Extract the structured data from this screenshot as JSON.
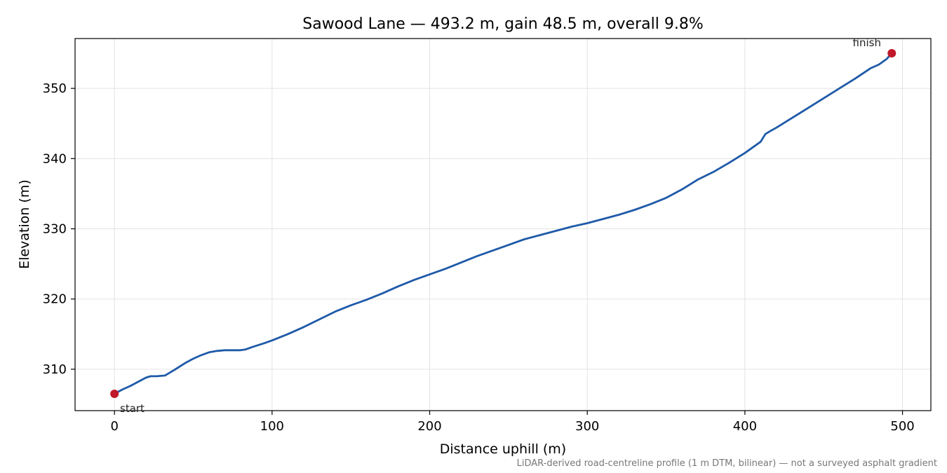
{
  "chart_data": {
    "type": "line",
    "title": "Sawood Lane — 493.2 m, gain 48.5 m, overall 9.8%",
    "xlabel": "Distance uphill (m)",
    "ylabel": "Elevation (m)",
    "xlim": [
      -25,
      518
    ],
    "ylim": [
      304.1,
      357.1
    ],
    "xticks": [
      0,
      100,
      200,
      300,
      400,
      500
    ],
    "yticks": [
      310,
      320,
      330,
      340,
      350
    ],
    "xtick_labels": [
      "0",
      "100",
      "200",
      "300",
      "400",
      "500"
    ],
    "ytick_labels": [
      "310",
      "320",
      "330",
      "340",
      "350"
    ],
    "grid": true,
    "line_color": "#1f5aa8",
    "marker_color": "#c0182a",
    "series": [
      {
        "x": [
          0,
          5,
          10,
          15,
          20,
          23,
          27,
          32,
          38,
          45,
          50,
          55,
          60,
          65,
          70,
          75,
          80,
          83,
          88,
          95,
          100,
          110,
          120,
          130,
          140,
          150,
          160,
          170,
          180,
          190,
          200,
          210,
          220,
          230,
          240,
          250,
          260,
          270,
          280,
          290,
          300,
          310,
          320,
          330,
          340,
          350,
          360,
          370,
          380,
          390,
          400,
          410,
          413,
          416,
          420,
          425,
          430,
          440,
          450,
          460,
          470,
          480,
          485,
          490,
          493.2
        ],
        "y": [
          306.5,
          307.1,
          307.6,
          308.2,
          308.8,
          309.0,
          309.0,
          309.1,
          309.9,
          310.9,
          311.5,
          312.0,
          312.4,
          312.6,
          312.7,
          312.7,
          312.7,
          312.8,
          313.2,
          313.7,
          314.1,
          315.0,
          316.0,
          317.1,
          318.2,
          319.1,
          319.9,
          320.8,
          321.8,
          322.7,
          323.5,
          324.3,
          325.2,
          326.1,
          326.9,
          327.7,
          328.5,
          329.1,
          329.7,
          330.3,
          330.8,
          331.4,
          332.0,
          332.7,
          333.5,
          334.4,
          335.6,
          337.0,
          338.1,
          339.4,
          340.8,
          342.4,
          343.5,
          343.9,
          344.4,
          345.1,
          345.8,
          347.2,
          348.6,
          350.0,
          351.4,
          352.9,
          353.4,
          354.2,
          355.0
        ]
      }
    ],
    "annotations": [
      {
        "text": "start",
        "x": 0,
        "y": 306.5
      },
      {
        "text": "finish",
        "x": 493.2,
        "y": 355.0
      }
    ],
    "caption": "LiDAR-derived road-centreline profile (1 m DTM, bilinear) — not a surveyed asphalt gradient"
  }
}
